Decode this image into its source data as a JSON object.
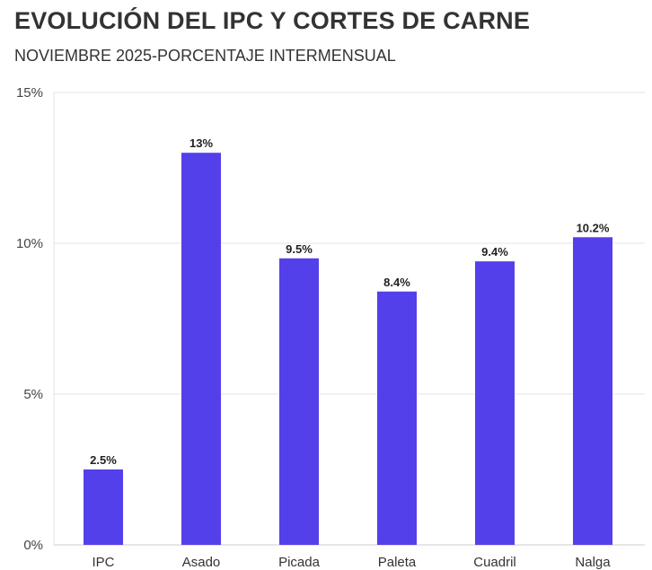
{
  "title": "EVOLUCIÓN DEL IPC Y CORTES DE CARNE",
  "subtitle": "NOVIEMBRE 2025-PORCENTAJE INTERMENSUAL",
  "colors": {
    "bar": "#5440EA",
    "grid": "#e6e6e6",
    "axis": "#cccccc"
  },
  "chart_data": {
    "type": "bar",
    "categories": [
      "IPC",
      "Asado",
      "Picada",
      "Paleta",
      "Cuadril",
      "Nalga"
    ],
    "values": [
      2.5,
      13,
      9.5,
      8.4,
      9.4,
      10.2
    ],
    "data_labels": [
      "2.5%",
      "13%",
      "9.5%",
      "8.4%",
      "9.4%",
      "10.2%"
    ],
    "yticks": [
      0,
      5,
      10,
      15
    ],
    "ytick_labels": [
      "0%",
      "5%",
      "10%",
      "15%"
    ],
    "ylim": [
      0,
      15
    ],
    "grid": true,
    "legend": "none"
  }
}
